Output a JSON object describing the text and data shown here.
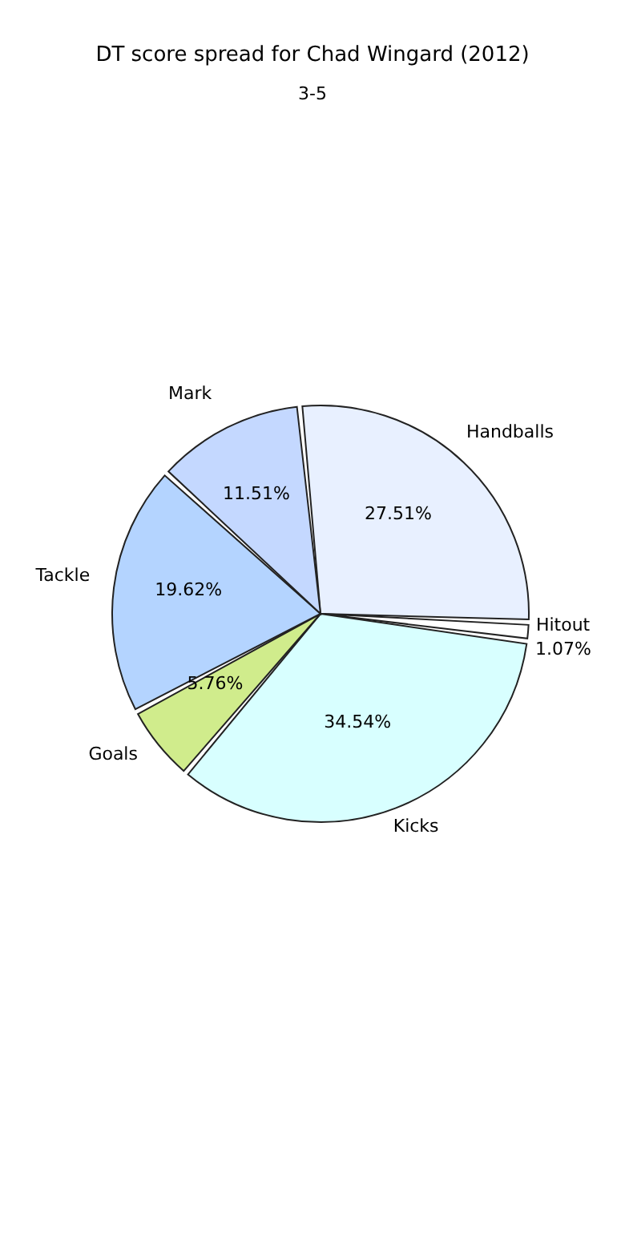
{
  "chart_data": {
    "type": "pie",
    "title": "DT score spread for Chad Wingard (2012)",
    "categories": [
      "Handballs",
      "Hitout",
      "Kicks",
      "Goals",
      "Tackle",
      "Mark"
    ],
    "values": [
      27.51,
      1.07,
      34.54,
      5.76,
      19.62,
      11.51
    ],
    "colors": [
      "#e8f0ff",
      "#ffffff",
      "#d8ffff",
      "#d0ec8c",
      "#b4d4ff",
      "#c4d8ff"
    ],
    "data_labels": true,
    "value_labels": [
      "27.51%",
      "1.07%",
      "34.54%",
      "5.76%",
      "19.62%",
      "11.51%"
    ],
    "annotations": [
      "3-5"
    ]
  }
}
